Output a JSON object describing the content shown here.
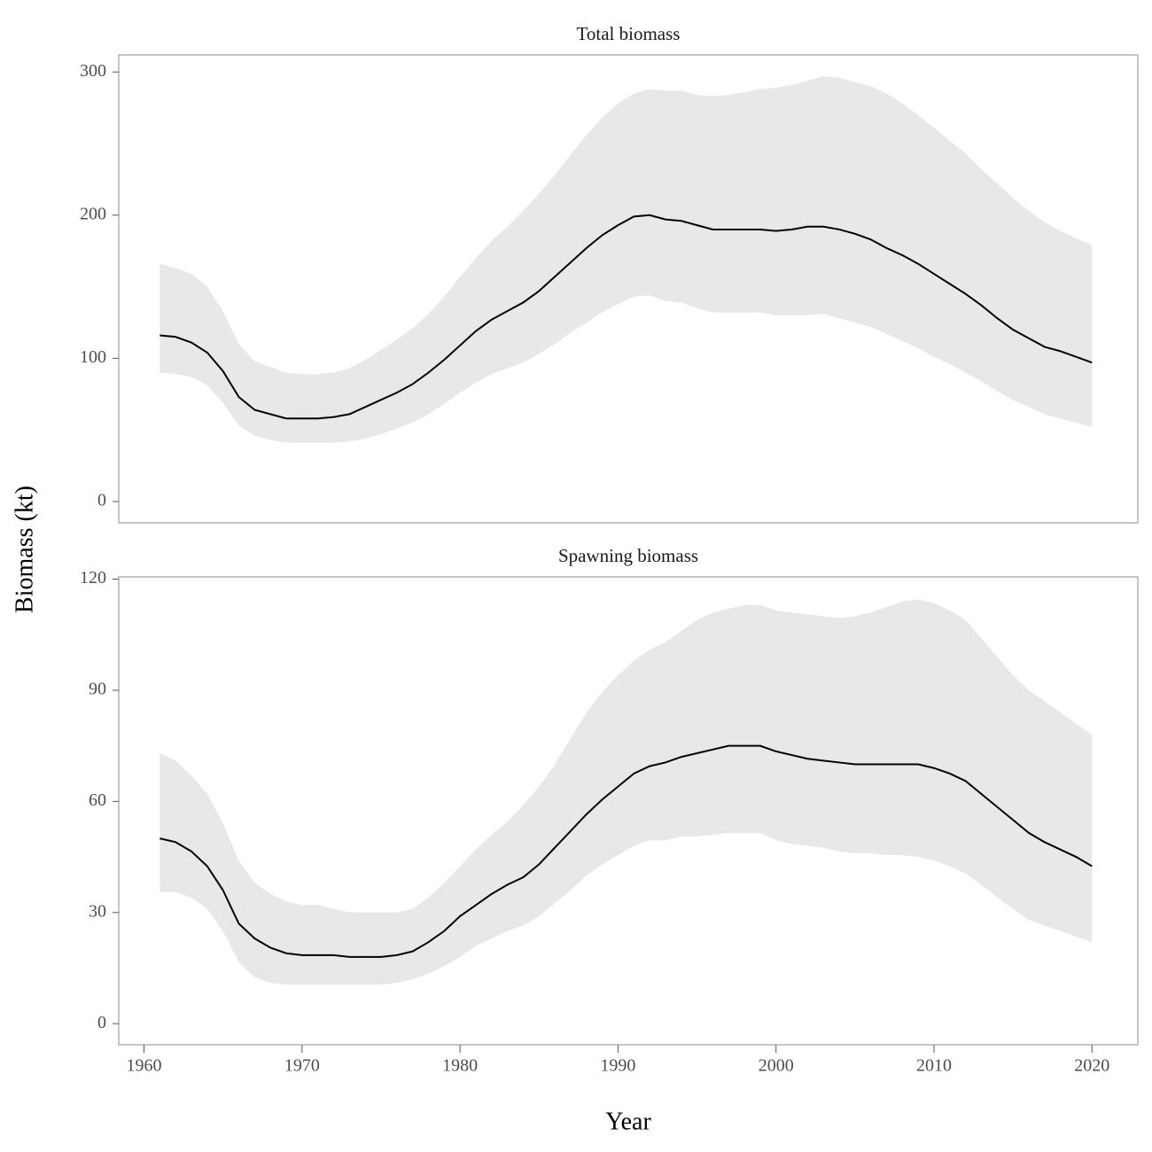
{
  "xlabel": "Year",
  "ylabel": "Biomass (kt)",
  "chart_data": [
    {
      "type": "line",
      "title": "Total biomass",
      "x": [
        1961,
        1962,
        1963,
        1964,
        1965,
        1966,
        1967,
        1968,
        1969,
        1970,
        1971,
        1972,
        1973,
        1974,
        1975,
        1976,
        1977,
        1978,
        1979,
        1980,
        1981,
        1982,
        1983,
        1984,
        1985,
        1986,
        1987,
        1988,
        1989,
        1990,
        1991,
        1992,
        1993,
        1994,
        1995,
        1996,
        1997,
        1998,
        1999,
        2000,
        2001,
        2002,
        2003,
        2004,
        2005,
        2006,
        2007,
        2008,
        2009,
        2010,
        2011,
        2012,
        2013,
        2014,
        2015,
        2016,
        2017,
        2018,
        2019,
        2020
      ],
      "values": [
        116,
        115,
        111,
        104,
        91,
        73,
        64,
        61,
        58,
        58,
        58,
        59,
        61,
        66,
        71,
        76,
        82,
        90,
        99,
        109,
        119,
        127,
        133,
        139,
        147,
        157,
        167,
        177,
        186,
        193,
        199,
        200,
        197,
        196,
        193,
        190,
        190,
        190,
        190,
        189,
        190,
        192,
        192,
        190,
        187,
        183,
        177,
        172,
        166,
        159,
        152,
        145,
        137,
        128,
        120,
        114,
        108,
        105,
        101,
        97
      ],
      "upper": [
        166,
        163,
        159,
        150,
        133,
        110,
        98,
        94,
        90,
        89,
        89,
        90,
        93,
        99,
        106,
        113,
        121,
        131,
        143,
        157,
        170,
        182,
        192,
        203,
        215,
        228,
        242,
        256,
        268,
        278,
        285,
        288,
        287,
        287,
        284,
        283,
        284,
        286,
        288,
        289,
        291,
        294,
        297,
        296,
        293,
        290,
        285,
        278,
        270,
        261,
        252,
        243,
        232,
        222,
        212,
        203,
        195,
        189,
        184,
        179
      ],
      "lower": [
        90,
        89,
        87,
        81,
        69,
        53,
        46,
        43,
        41,
        41,
        41,
        41,
        42,
        44,
        47,
        51,
        55,
        61,
        68,
        76,
        83,
        89,
        93,
        97,
        103,
        110,
        118,
        125,
        132,
        138,
        143,
        144,
        140,
        139,
        135,
        132,
        132,
        132,
        132,
        130,
        130,
        130,
        131,
        128,
        125,
        122,
        117,
        112,
        107,
        101,
        96,
        90,
        84,
        77,
        71,
        66,
        61,
        58,
        55,
        52
      ],
      "color": "#000000",
      "band_color": "#e8e8e8",
      "xlim": [
        1958.4,
        2022.9
      ],
      "ylim": [
        -14.9,
        311.9
      ],
      "yticks": [
        0,
        100,
        200,
        300
      ]
    },
    {
      "type": "line",
      "title": "Spawning biomass",
      "x": [
        1961,
        1962,
        1963,
        1964,
        1965,
        1966,
        1967,
        1968,
        1969,
        1970,
        1971,
        1972,
        1973,
        1974,
        1975,
        1976,
        1977,
        1978,
        1979,
        1980,
        1981,
        1982,
        1983,
        1984,
        1985,
        1986,
        1987,
        1988,
        1989,
        1990,
        1991,
        1992,
        1993,
        1994,
        1995,
        1996,
        1997,
        1998,
        1999,
        2000,
        2001,
        2002,
        2003,
        2004,
        2005,
        2006,
        2007,
        2008,
        2009,
        2010,
        2011,
        2012,
        2013,
        2014,
        2015,
        2016,
        2017,
        2018,
        2019,
        2020
      ],
      "values": [
        50,
        49,
        46.5,
        42.5,
        36,
        27,
        23,
        20.5,
        19,
        18.5,
        18.5,
        18.5,
        18,
        18,
        18,
        18.5,
        19.5,
        22,
        25,
        29,
        32,
        35,
        37.5,
        39.5,
        43,
        47.5,
        52,
        56.5,
        60.5,
        64,
        67.5,
        69.5,
        70.5,
        72,
        73,
        74,
        75,
        75,
        75,
        73.5,
        72.5,
        71.5,
        71,
        70.5,
        70,
        70,
        70,
        70,
        70,
        69,
        67.5,
        65.5,
        62,
        58.5,
        55,
        51.5,
        49,
        47,
        45,
        42.5
      ],
      "upper": [
        73,
        71,
        67,
        62,
        54,
        44,
        38,
        35,
        33,
        32,
        32,
        31,
        30,
        30,
        30,
        30,
        31,
        34,
        38,
        42.5,
        47,
        51,
        54.5,
        59,
        64,
        70,
        77,
        84,
        89.5,
        94,
        98,
        101,
        103,
        106,
        109,
        111,
        112,
        113,
        113,
        111.5,
        111,
        110.5,
        110,
        109.5,
        110,
        111,
        112.5,
        114,
        114.5,
        113.5,
        111.5,
        109,
        104,
        99,
        94,
        90,
        87,
        84,
        81,
        78
      ],
      "lower": [
        35.5,
        35.5,
        34,
        31,
        25,
        16.5,
        12.5,
        11,
        10.5,
        10.5,
        10.5,
        10.5,
        10.5,
        10.5,
        10.5,
        11,
        12,
        13.5,
        15.5,
        18,
        21,
        23,
        25,
        26.5,
        29,
        32.5,
        36,
        40,
        43,
        45.5,
        48,
        49.5,
        49.5,
        50.5,
        50.5,
        51,
        51.5,
        51.5,
        51.5,
        49.5,
        48.5,
        48,
        47.5,
        46.5,
        46,
        46,
        45.5,
        45.5,
        45,
        44,
        42.5,
        40.5,
        37.5,
        34,
        31,
        28,
        26.5,
        25,
        23.5,
        22
      ],
      "color": "#000000",
      "band_color": "#e8e8e8",
      "xlim": [
        1958.4,
        2022.9
      ],
      "ylim": [
        -5.7,
        120.6
      ],
      "yticks": [
        0,
        30,
        60,
        90,
        120
      ],
      "xticks": [
        1960,
        1970,
        1980,
        1990,
        2000,
        2010,
        2020
      ]
    }
  ]
}
